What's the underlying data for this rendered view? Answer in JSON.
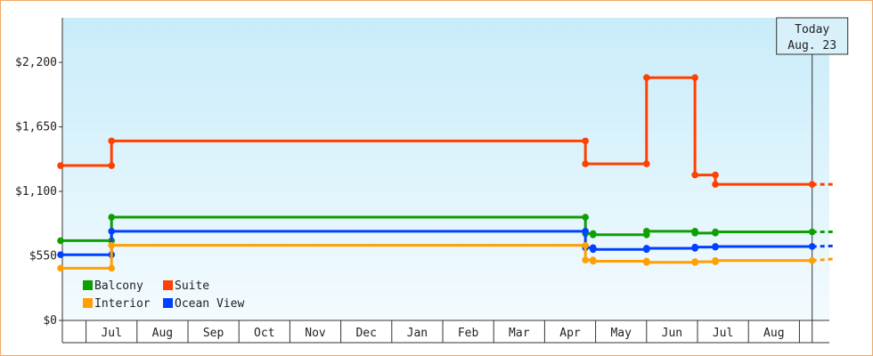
{
  "chart_data": {
    "type": "line",
    "title": "",
    "xlabel": "",
    "ylabel": "",
    "x_tick_labels": [
      "Jul",
      "Aug",
      "Sep",
      "Oct",
      "Nov",
      "Dec",
      "Jan",
      "Feb",
      "Mar",
      "Apr",
      "May",
      "Jun",
      "Jul",
      "Aug"
    ],
    "y_ticks": [
      0,
      550,
      1100,
      1650,
      2200
    ],
    "y_tick_labels": [
      "$0",
      "$550",
      "$1,100",
      "$1,650",
      "$2,200"
    ],
    "ylim": [
      0,
      2580
    ],
    "x_unit": "months since Jun 1 (step-line fare history)",
    "xlim": [
      0,
      15.2
    ],
    "today": {
      "line1": "Today",
      "line2": "Aug. 23",
      "x": 14.75
    },
    "grid": false,
    "legend_position": "bottom-left",
    "series": [
      {
        "name": "Suite",
        "color": "#ff4000",
        "points": [
          [
            0,
            1320
          ],
          [
            1.0,
            1320
          ],
          [
            1.0,
            1530
          ],
          [
            10.3,
            1530
          ],
          [
            10.3,
            1335
          ],
          [
            11.5,
            1335
          ],
          [
            11.5,
            2070
          ],
          [
            12.45,
            2070
          ],
          [
            12.45,
            1240
          ],
          [
            12.85,
            1240
          ],
          [
            12.85,
            1160
          ],
          [
            14.75,
            1160
          ]
        ],
        "projection": [
          14.75,
          15.2,
          1160
        ]
      },
      {
        "name": "Balcony",
        "color": "#0ca000",
        "points": [
          [
            0,
            680
          ],
          [
            1.0,
            680
          ],
          [
            1.0,
            880
          ],
          [
            10.3,
            880
          ],
          [
            10.3,
            740
          ],
          [
            10.45,
            740
          ],
          [
            10.45,
            730
          ],
          [
            11.5,
            730
          ],
          [
            11.5,
            760
          ],
          [
            12.45,
            760
          ],
          [
            12.45,
            745
          ],
          [
            12.85,
            745
          ],
          [
            12.85,
            755
          ],
          [
            14.75,
            755
          ]
        ],
        "projection": [
          14.75,
          15.2,
          755
        ]
      },
      {
        "name": "Ocean View",
        "color": "#0040ff",
        "points": [
          [
            0,
            560
          ],
          [
            1.0,
            560
          ],
          [
            1.0,
            760
          ],
          [
            10.3,
            760
          ],
          [
            10.3,
            620
          ],
          [
            10.45,
            620
          ],
          [
            10.45,
            605
          ],
          [
            11.5,
            605
          ],
          [
            11.5,
            615
          ],
          [
            12.45,
            615
          ],
          [
            12.45,
            625
          ],
          [
            12.85,
            625
          ],
          [
            12.85,
            630
          ],
          [
            14.75,
            630
          ]
        ],
        "projection": [
          14.75,
          15.2,
          635
        ]
      },
      {
        "name": "Interior",
        "color": "#ffa000",
        "points": [
          [
            0,
            445
          ],
          [
            1.0,
            445
          ],
          [
            1.0,
            640
          ],
          [
            10.3,
            640
          ],
          [
            10.3,
            515
          ],
          [
            10.45,
            515
          ],
          [
            10.45,
            505
          ],
          [
            11.5,
            505
          ],
          [
            11.5,
            495
          ],
          [
            12.45,
            495
          ],
          [
            12.45,
            500
          ],
          [
            12.85,
            500
          ],
          [
            12.85,
            510
          ],
          [
            14.75,
            510
          ]
        ],
        "projection": [
          14.75,
          15.2,
          525
        ]
      }
    ],
    "legend": [
      {
        "name": "Balcony",
        "color": "#0ca000"
      },
      {
        "name": "Suite",
        "color": "#ff4000"
      },
      {
        "name": "Interior",
        "color": "#ffa000"
      },
      {
        "name": "Ocean View",
        "color": "#0040ff"
      }
    ]
  }
}
